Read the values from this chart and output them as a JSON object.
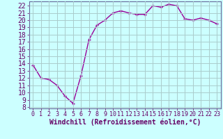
{
  "x": [
    0,
    1,
    2,
    3,
    4,
    5,
    6,
    7,
    8,
    9,
    10,
    11,
    12,
    13,
    14,
    15,
    16,
    17,
    18,
    19,
    20,
    21,
    22,
    23
  ],
  "y": [
    13.8,
    12.0,
    11.8,
    11.0,
    9.5,
    8.5,
    12.3,
    17.3,
    19.3,
    20.0,
    21.0,
    21.3,
    21.0,
    20.8,
    20.8,
    22.0,
    21.8,
    22.2,
    22.0,
    20.2,
    20.0,
    20.3,
    20.0,
    19.5
  ],
  "line_color": "#990099",
  "marker": "+",
  "marker_size": 3,
  "xlabel": "Windchill (Refroidissement éolien,°C)",
  "bg_color": "#ccffff",
  "grid_color": "#aacccc",
  "xlim": [
    -0.5,
    23.5
  ],
  "ylim": [
    7.8,
    22.6
  ],
  "yticks": [
    8,
    9,
    10,
    11,
    12,
    13,
    14,
    15,
    16,
    17,
    18,
    19,
    20,
    21,
    22
  ],
  "xticks": [
    0,
    1,
    2,
    3,
    4,
    5,
    6,
    7,
    8,
    9,
    10,
    11,
    12,
    13,
    14,
    15,
    16,
    17,
    18,
    19,
    20,
    21,
    22,
    23
  ],
  "tick_color": "#660066",
  "tick_fontsize": 6,
  "xlabel_fontsize": 7,
  "line_width": 1.0,
  "spine_color": "#666699"
}
